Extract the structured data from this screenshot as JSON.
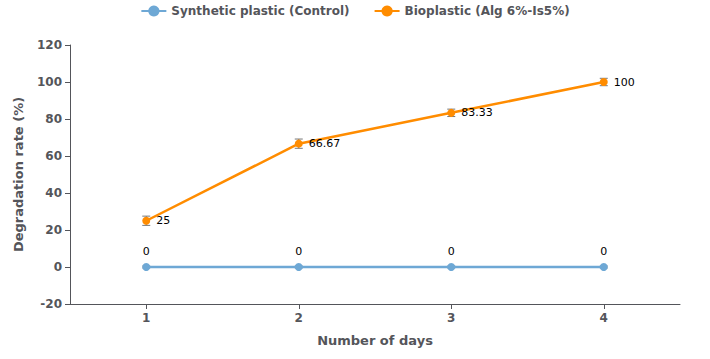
{
  "chart_data": {
    "type": "line",
    "x": [
      1,
      2,
      3,
      4
    ],
    "xlim": [
      0.5,
      4.5
    ],
    "xticks": [
      1,
      2,
      3,
      4
    ],
    "ylim": [
      -20,
      120
    ],
    "yticks": [
      -20,
      0,
      20,
      40,
      60,
      80,
      100,
      120
    ],
    "xlabel": "Number of days",
    "ylabel": "Degradation rate (%)",
    "grid": false,
    "legend": "top",
    "data_labels": true,
    "marker": "circle",
    "line_style": "solid",
    "series": [
      {
        "name": "Synthetic plastic (Control)",
        "color": "#6EA8D5",
        "values": [
          0,
          0,
          0,
          0
        ],
        "errors": [
          0.5,
          0.5,
          0.5,
          0.5
        ]
      },
      {
        "name": "Bioplastic (Alg 6%-Is5%)",
        "color": "#FF8C00",
        "values": [
          25,
          66.67,
          83.33,
          100
        ],
        "errors": [
          2.5,
          2.5,
          2.0,
          2.0
        ]
      }
    ]
  }
}
